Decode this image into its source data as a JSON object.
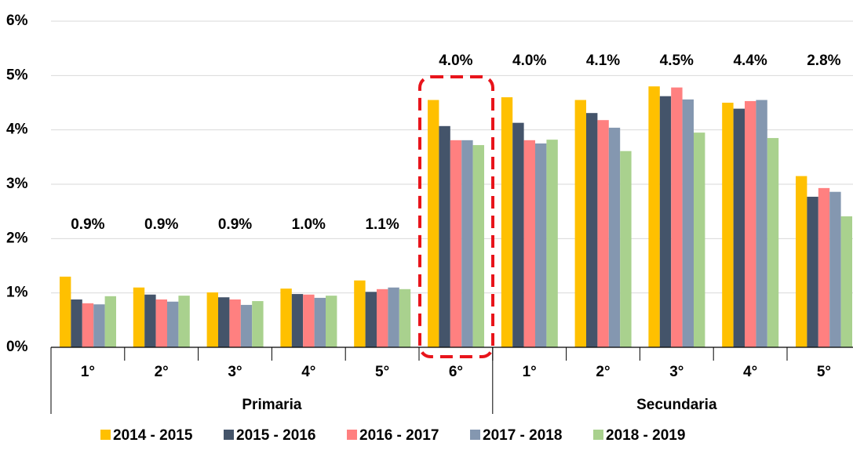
{
  "chart_data": {
    "type": "bar",
    "categories": [
      "1°",
      "2°",
      "3°",
      "4°",
      "5°",
      "6°",
      "1°",
      "2°",
      "3°",
      "4°",
      "5°"
    ],
    "groups": [
      {
        "label": "Primaria",
        "count": 6
      },
      {
        "label": "Secundaria",
        "count": 5
      }
    ],
    "annotations": [
      "0.9%",
      "0.9%",
      "0.9%",
      "1.0%",
      "1.1%",
      "4.0%",
      "4.0%",
      "4.1%",
      "4.5%",
      "4.4%",
      "2.8%"
    ],
    "series": [
      {
        "name": "2014 - 2015",
        "color": "#FFC000",
        "values": [
          1.3,
          1.1,
          1.01,
          1.08,
          1.23,
          4.55,
          4.6,
          4.55,
          4.8,
          4.5,
          3.15
        ]
      },
      {
        "name": "2015 - 2016",
        "color": "#44546A",
        "values": [
          0.88,
          0.97,
          0.92,
          0.98,
          1.02,
          4.07,
          4.13,
          4.31,
          4.62,
          4.39,
          2.77
        ]
      },
      {
        "name": "2016 - 2017",
        "color": "#FF8080",
        "values": [
          0.81,
          0.88,
          0.88,
          0.97,
          1.07,
          3.81,
          3.81,
          4.18,
          4.78,
          4.53,
          2.93
        ]
      },
      {
        "name": "2017 - 2018",
        "color": "#8497B0",
        "values": [
          0.79,
          0.84,
          0.78,
          0.91,
          1.1,
          3.81,
          3.75,
          4.04,
          4.56,
          4.55,
          2.86
        ]
      },
      {
        "name": "2018 - 2019",
        "color": "#A9D18E",
        "values": [
          0.94,
          0.95,
          0.85,
          0.95,
          1.07,
          3.72,
          3.82,
          3.61,
          3.95,
          3.85,
          2.41
        ]
      }
    ],
    "ylim": [
      0,
      6
    ],
    "yticks": [
      {
        "value": 0,
        "label": "0%"
      },
      {
        "value": 1,
        "label": "1%"
      },
      {
        "value": 2,
        "label": "2%"
      },
      {
        "value": 3,
        "label": "3%"
      },
      {
        "value": 4,
        "label": "4%"
      },
      {
        "value": 5,
        "label": "5%"
      },
      {
        "value": 6,
        "label": "6%"
      }
    ],
    "grid": true
  }
}
